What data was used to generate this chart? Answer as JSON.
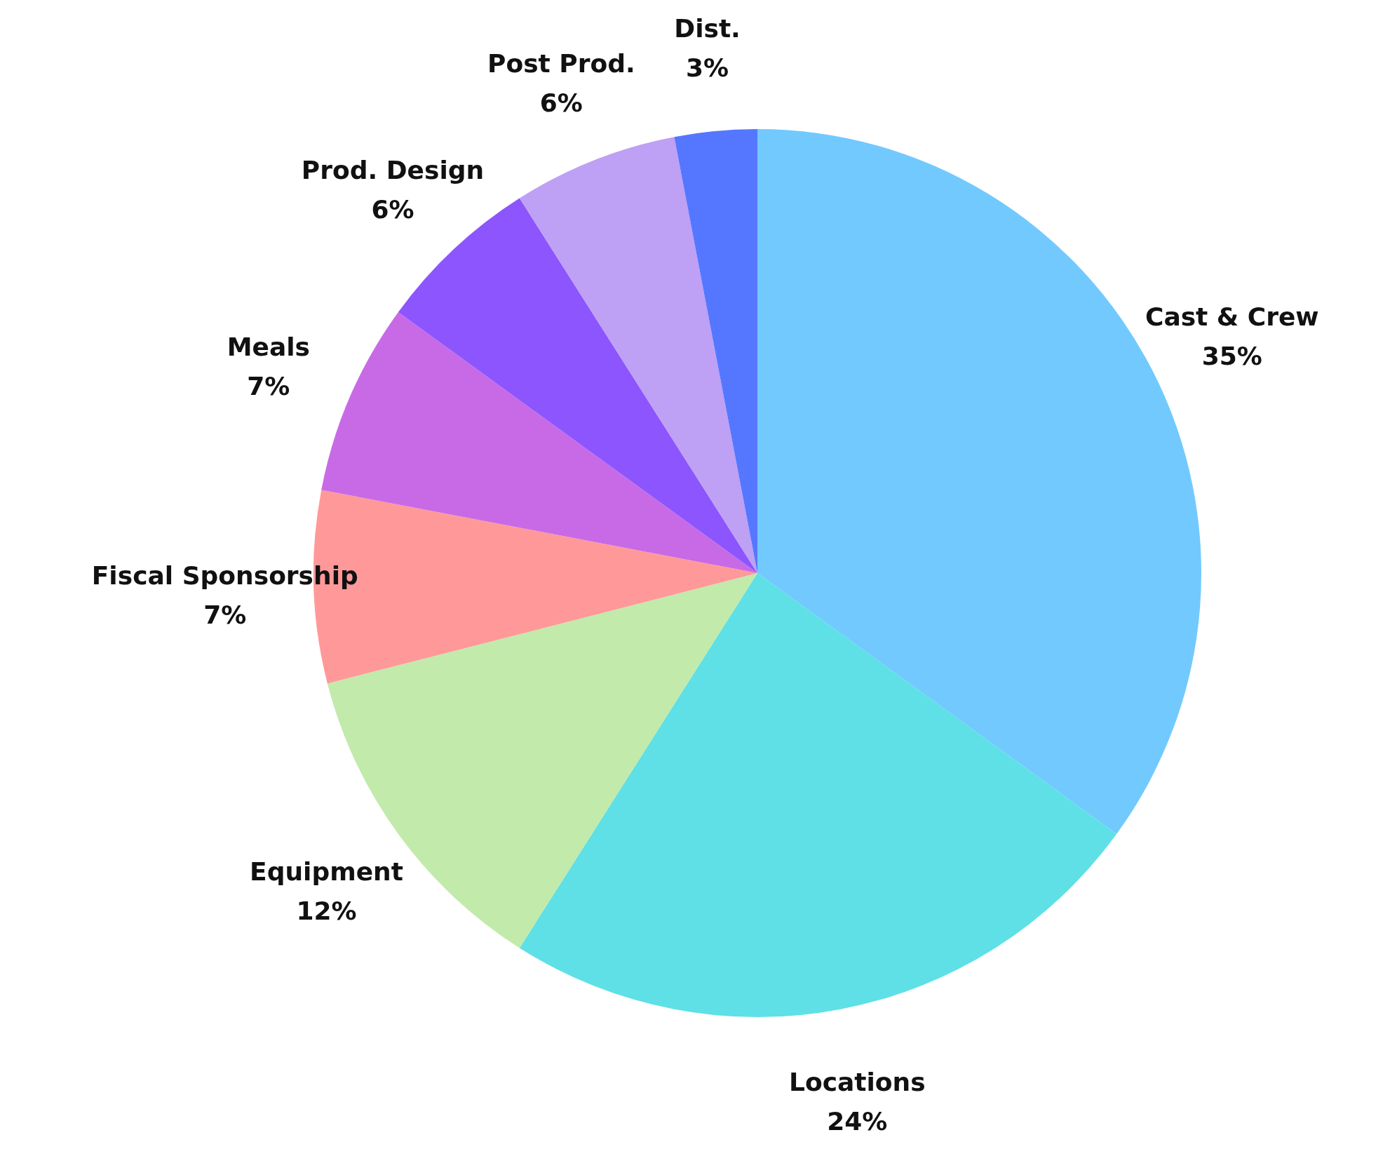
{
  "chart_data": {
    "type": "pie",
    "categories": [
      "Cast & Crew",
      "Locations",
      "Equipment",
      "Fiscal Sponsorship",
      "Meals",
      "Prod. Design",
      "Post Prod.",
      "Dist."
    ],
    "values": [
      35,
      24,
      12,
      7,
      7,
      6,
      6,
      3
    ],
    "value_labels": [
      "35%",
      "24%",
      "12%",
      "7%",
      "7%",
      "6%",
      "6%",
      "3%"
    ],
    "colors": [
      "#72c9fe",
      "#5ee0e6",
      "#c1eaab",
      "#ff9999",
      "#c86ae6",
      "#8d55fd",
      "#bea0f5",
      "#5577ff"
    ]
  }
}
